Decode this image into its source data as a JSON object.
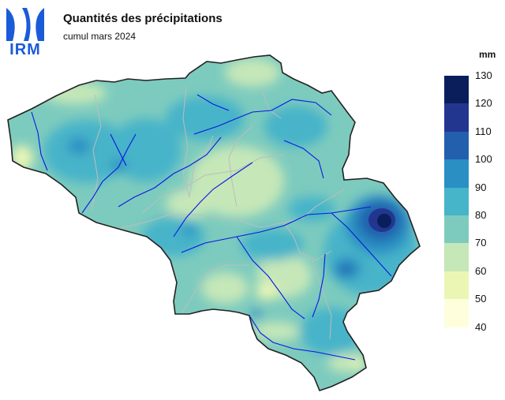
{
  "header": {
    "title": "Quantités des précipitations",
    "subtitle": "cumul mars 2024"
  },
  "logo": {
    "text": "IRM",
    "color": "#1a5bd8"
  },
  "legend": {
    "unit": "mm",
    "levels": [
      130,
      120,
      110,
      100,
      90,
      80,
      70,
      60,
      50,
      40
    ],
    "colors": [
      "#0a1e5c",
      "#23368f",
      "#2260ad",
      "#2a8fc3",
      "#46b4c9",
      "#7dcbbe",
      "#c6e7b8",
      "#ecf6b4",
      "#fefedd"
    ]
  },
  "map": {
    "region": "Belgique",
    "rivers_color": "#0a17e0",
    "borders_color": "#bdbdbd",
    "max_area": "Hautes Fagnes (~130 mm)",
    "min_area": "Littoral / Famenne (~50-60 mm)"
  }
}
